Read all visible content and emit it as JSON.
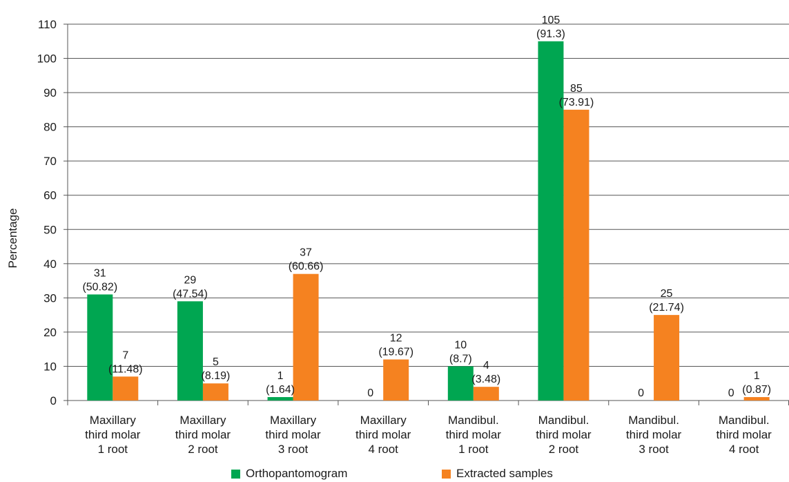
{
  "colors": {
    "green": "#00a651",
    "orange": "#f58220",
    "axis": "#555555",
    "grid": "#555555"
  },
  "chart_data": {
    "type": "bar",
    "ylabel": "Percentage",
    "ylim": [
      0,
      110
    ],
    "yticks": [
      "0",
      "10",
      "20",
      "30",
      "40",
      "50",
      "60",
      "70",
      "80",
      "90",
      "100",
      "110"
    ],
    "grid": true,
    "legend_position": "bottom",
    "categories": [
      [
        "Maxillary",
        "third molar",
        "1 root"
      ],
      [
        "Maxillary",
        "third molar",
        "2 root"
      ],
      [
        "Maxillary",
        "third molar",
        "3 root"
      ],
      [
        "Maxillary",
        "third molar",
        "4 root"
      ],
      [
        "Mandibul.",
        "third molar",
        "1 root"
      ],
      [
        "Mandibul.",
        "third molar",
        "2 root"
      ],
      [
        "Mandibul.",
        "third molar",
        "3 root"
      ],
      [
        "Mandibul.",
        "third molar",
        "4 root"
      ]
    ],
    "series": [
      {
        "name": "Orthopantomogram",
        "color": "#00a651",
        "values": [
          31,
          29,
          1,
          0,
          10,
          105,
          0,
          0
        ],
        "labels": [
          [
            "31",
            "(50.82)"
          ],
          [
            "29",
            "(47.54)"
          ],
          [
            "1",
            "(1.64)"
          ],
          [
            "0"
          ],
          [
            "10",
            "(8.7)"
          ],
          [
            "105",
            "(91.3)"
          ],
          [
            "0"
          ],
          [
            "0"
          ]
        ]
      },
      {
        "name": "Extracted samples",
        "color": "#f58220",
        "values": [
          7,
          5,
          37,
          12,
          4,
          85,
          25,
          1
        ],
        "labels": [
          [
            "7",
            "(11.48)"
          ],
          [
            "5",
            "(8.19)"
          ],
          [
            "37",
            "(60.66)"
          ],
          [
            "12",
            "(19.67)"
          ],
          [
            "4",
            "(3.48)"
          ],
          [
            "85",
            "(73.91)"
          ],
          [
            "25",
            "(21.74)"
          ],
          [
            "1",
            "(0.87)"
          ]
        ]
      }
    ]
  }
}
